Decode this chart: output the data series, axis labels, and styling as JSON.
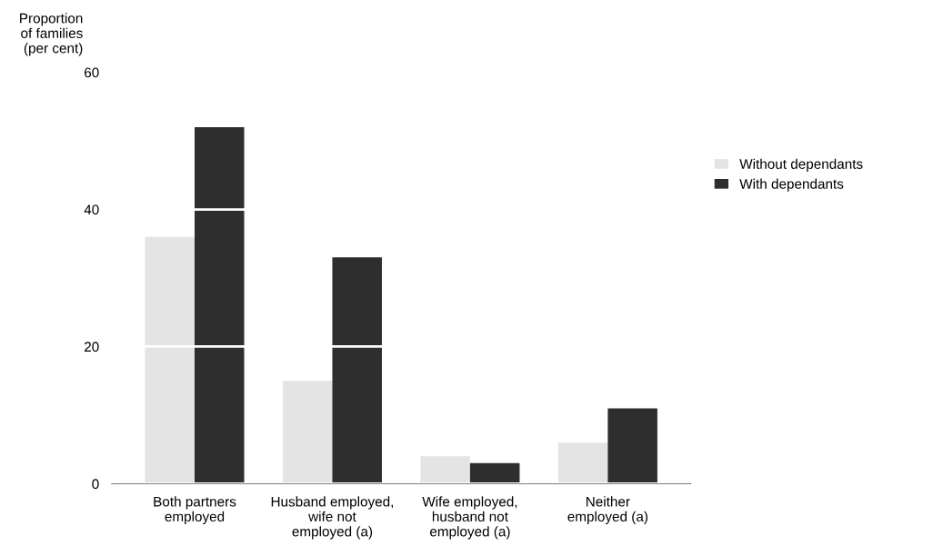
{
  "chart_data": {
    "type": "bar",
    "ylabel": "Proportion\nof families\n(per cent)",
    "categories": [
      "Both partners\nemployed",
      "Husband employed,\nwife not\nemployed (a)",
      "Wife employed,\nhusband not\nemployed (a)",
      "Neither\nemployed (a)"
    ],
    "series": [
      {
        "name": "Without dependants",
        "color": "#e4e4e4",
        "values": [
          36,
          15,
          4,
          6
        ]
      },
      {
        "name": "With dependants",
        "color": "#2e2e2e",
        "values": [
          52,
          33,
          3,
          11
        ]
      }
    ],
    "ylim": [
      0,
      60
    ],
    "yticks": [
      0,
      20,
      40,
      60
    ],
    "grid": "y",
    "legend": "right"
  }
}
